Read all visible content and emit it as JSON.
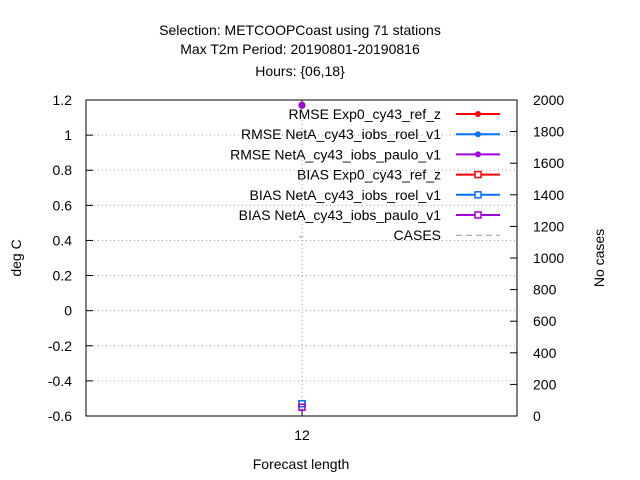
{
  "chart_data": {
    "type": "scatter",
    "title_lines": [
      "Selection: METCOOPCoast using    71 stations",
      "Max T2m   Period: 20190801-20190816",
      "Hours: {06,18}"
    ],
    "xlabel": "Forecast length",
    "ylabel": "deg C",
    "y2label": "No cases",
    "categories": [
      "12"
    ],
    "ylim": [
      -0.6,
      1.2
    ],
    "y2lim": [
      0,
      2000
    ],
    "yticks": [
      "1.2",
      "1",
      "0.8",
      "0.6",
      "0.4",
      "0.2",
      "0",
      "-0.2",
      "-0.4",
      "-0.6"
    ],
    "y2ticks": [
      "2000",
      "1800",
      "1600",
      "1400",
      "1200",
      "1000",
      "800",
      "600",
      "400",
      "200",
      "0"
    ],
    "grid": true,
    "legend_position": "top-right",
    "series": [
      {
        "name": "RMSE Exp0_cy43_ref_z",
        "color": "#ff0000",
        "marker": "filled-circle",
        "values": [
          1.17
        ]
      },
      {
        "name": "RMSE NetA_cy43_iobs_roel_v1",
        "color": "#0072ff",
        "marker": "filled-circle",
        "values": [
          1.17
        ]
      },
      {
        "name": "RMSE NetA_cy43_iobs_paulo_v1",
        "color": "#a000e0",
        "marker": "filled-circle",
        "values": [
          1.17
        ]
      },
      {
        "name": "BIAS Exp0_cy43_ref_z",
        "color": "#ff0000",
        "marker": "open-square",
        "values": [
          -0.53
        ]
      },
      {
        "name": "BIAS NetA_cy43_iobs_roel_v1",
        "color": "#0072ff",
        "marker": "open-square",
        "values": [
          -0.53
        ]
      },
      {
        "name": "BIAS NetA_cy43_iobs_paulo_v1",
        "color": "#a000e0",
        "marker": "open-square",
        "values": [
          -0.55
        ]
      },
      {
        "name": "CASES",
        "color": "#999999",
        "marker": "dashed-line",
        "values": [
          1134
        ]
      }
    ]
  }
}
